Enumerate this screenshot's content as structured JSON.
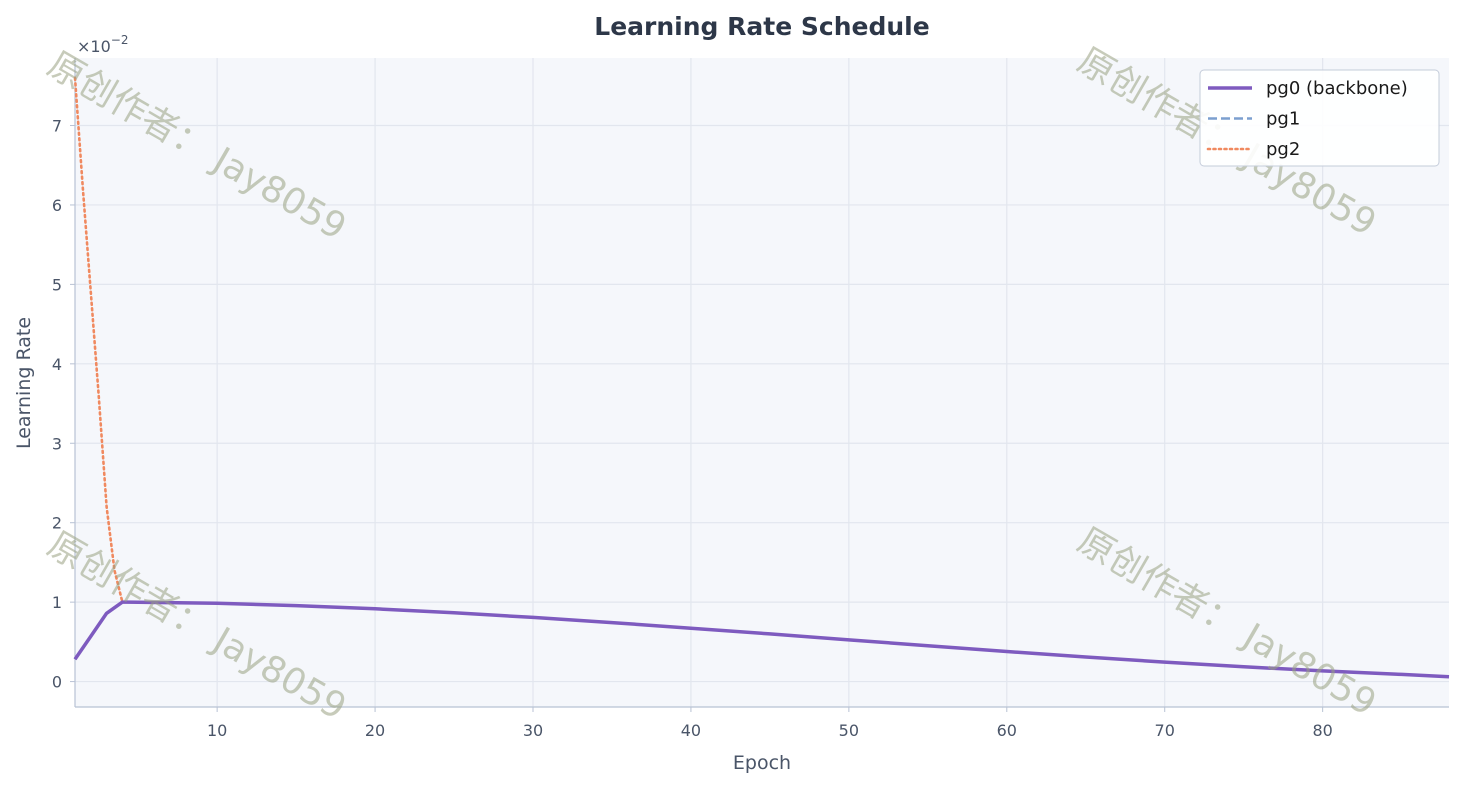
{
  "chart_data": {
    "type": "line",
    "title": "Learning Rate Schedule",
    "xlabel": "Epoch",
    "ylabel": "Learning Rate",
    "offset_text": "×10",
    "offset_exponent": "−2",
    "xlim": [
      1,
      88
    ],
    "ylim": [
      -0.0032,
      0.0785
    ],
    "x_ticks": [
      10,
      20,
      30,
      40,
      50,
      60,
      70,
      80
    ],
    "y_ticks": [
      0,
      0.01,
      0.02,
      0.03,
      0.04,
      0.05,
      0.06,
      0.07
    ],
    "y_tick_labels": [
      "0",
      "1",
      "2",
      "3",
      "4",
      "5",
      "6",
      "7"
    ],
    "grid": true,
    "legend_position": "top-right",
    "series": [
      {
        "name": "pg0 (backbone)",
        "color": "#7e5bbf",
        "style": "solid",
        "x": [
          1,
          3,
          4,
          5,
          10,
          15,
          20,
          25,
          30,
          35,
          40,
          45,
          50,
          55,
          60,
          65,
          70,
          75,
          80,
          85,
          88
        ],
        "y": [
          0.0028,
          0.0086,
          0.01,
          0.00999,
          0.00985,
          0.00957,
          0.00916,
          0.00866,
          0.00808,
          0.00742,
          0.00672,
          0.006,
          0.00525,
          0.00452,
          0.00379,
          0.0031,
          0.00245,
          0.00186,
          0.00134,
          0.0009,
          0.00062
        ]
      },
      {
        "name": "pg1",
        "color": "#7b9fcf",
        "style": "dashed",
        "x": [
          1,
          3,
          4,
          5,
          10,
          15,
          20,
          25,
          30,
          35,
          40,
          45,
          50,
          55,
          60,
          65,
          70,
          75,
          80,
          85,
          88
        ],
        "y": [
          0.0028,
          0.0086,
          0.01,
          0.00999,
          0.00985,
          0.00957,
          0.00916,
          0.00866,
          0.00808,
          0.00742,
          0.00672,
          0.006,
          0.00525,
          0.00452,
          0.00379,
          0.0031,
          0.00245,
          0.00186,
          0.00134,
          0.0009,
          0.00062
        ]
      },
      {
        "name": "pg2",
        "color": "#f0895f",
        "style": "dotted",
        "x": [
          1,
          1.5,
          2,
          2.5,
          3,
          3.5,
          4
        ],
        "y": [
          0.076,
          0.062,
          0.049,
          0.036,
          0.022,
          0.014,
          0.01
        ]
      }
    ]
  },
  "watermark": {
    "text": "原创作者： Jay8059",
    "color": "#9aa283"
  },
  "colors": {
    "plot_background": "#f5f7fb",
    "grid": "#e2e6ee",
    "axis": "#b8c2d4"
  }
}
